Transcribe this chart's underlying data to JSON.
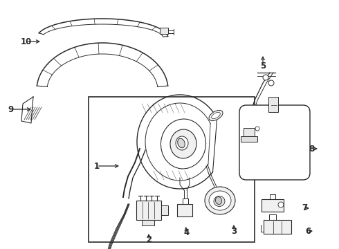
{
  "background_color": "#ffffff",
  "line_color": "#2a2a2a",
  "figsize": [
    4.9,
    3.6
  ],
  "dpi": 100,
  "xlim": [
    0,
    490
  ],
  "ylim": [
    0,
    360
  ]
}
